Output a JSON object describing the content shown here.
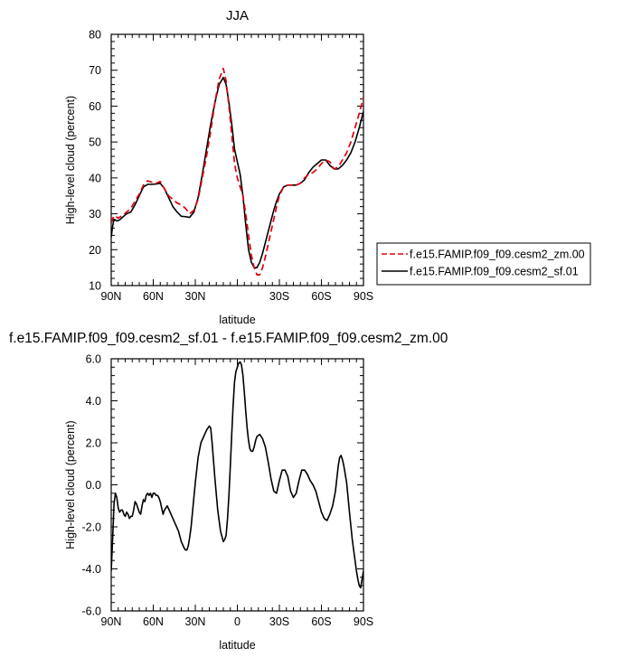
{
  "chart_data": [
    {
      "type": "line",
      "title": "JJA",
      "xlabel": "latitude",
      "ylabel": "High-level cloud (percent)",
      "xlim": [
        90,
        -90
      ],
      "ylim": [
        10,
        80
      ],
      "x_ticks": [
        90,
        60,
        30,
        0,
        -30,
        -60,
        -90
      ],
      "x_tick_labels": [
        "90N",
        "60N",
        "30N",
        "",
        "30S",
        "60S",
        "90S"
      ],
      "y_ticks": [
        10,
        20,
        30,
        40,
        50,
        60,
        70,
        80
      ],
      "y_tick_labels": [
        "10",
        "20",
        "30",
        "40",
        "50",
        "60",
        "70",
        "80"
      ],
      "legend_position": "right",
      "series": [
        {
          "name": "f.e15.FAMIP.f09_f09.cesm2_zm.00",
          "color": "#e0000f",
          "dash": "dashed",
          "x": [
            90,
            88,
            85,
            82,
            79,
            76,
            73,
            70,
            67,
            64,
            61,
            58,
            55,
            52,
            49,
            46,
            43,
            40,
            37,
            34,
            31,
            28,
            25,
            22,
            19,
            16,
            13,
            10,
            8,
            6,
            4,
            2,
            0,
            -2,
            -4,
            -6,
            -8,
            -10,
            -12,
            -14,
            -16,
            -18,
            -20,
            -22,
            -24,
            -26,
            -28,
            -30,
            -33,
            -36,
            -39,
            -42,
            -45,
            -48,
            -51,
            -54,
            -57,
            -60,
            -63,
            -66,
            -69,
            -72,
            -75,
            -78,
            -81,
            -84,
            -87,
            -90
          ],
          "values": [
            27.5,
            29.5,
            28.8,
            29.5,
            30.5,
            31.5,
            33.5,
            35.5,
            38.0,
            39.2,
            38.8,
            38.5,
            39.0,
            37.0,
            35.0,
            34.0,
            33.0,
            32.5,
            31.5,
            30.0,
            31.0,
            34.0,
            40.0,
            46.0,
            53.0,
            61.0,
            67.5,
            70.5,
            67.0,
            60.0,
            52.0,
            44.0,
            40.0,
            37.5,
            35.0,
            30.0,
            24.0,
            18.5,
            15.0,
            13.0,
            13.0,
            15.0,
            18.0,
            21.5,
            25.0,
            28.5,
            32.0,
            35.0,
            37.5,
            38.0,
            38.0,
            38.0,
            38.5,
            40.0,
            41.0,
            41.5,
            42.5,
            44.0,
            45.0,
            44.5,
            42.5,
            43.0,
            45.0,
            47.0,
            50.0,
            54.0,
            58.0,
            62.5
          ]
        },
        {
          "name": "f.e15.FAMIP.f09_f09.cesm2_sf.01",
          "color": "#000000",
          "dash": "solid",
          "x": [
            90,
            89,
            88,
            86,
            84,
            82,
            79,
            76,
            73,
            70,
            67,
            64,
            61,
            58,
            55,
            52,
            49,
            46,
            43,
            40,
            37,
            34,
            31,
            28,
            25,
            22,
            19,
            16,
            13,
            10,
            8,
            6,
            4,
            2,
            0,
            -2,
            -4,
            -6,
            -8,
            -10,
            -12,
            -14,
            -16,
            -18,
            -20,
            -22,
            -24,
            -26,
            -28,
            -30,
            -33,
            -36,
            -39,
            -42,
            -45,
            -48,
            -51,
            -54,
            -57,
            -60,
            -63,
            -66,
            -69,
            -72,
            -75,
            -78,
            -81,
            -84,
            -87,
            -90
          ],
          "values": [
            23.5,
            26.5,
            28.5,
            28.0,
            28.3,
            29.0,
            30.0,
            30.5,
            32.5,
            35.0,
            37.5,
            38.2,
            38.2,
            38.3,
            38.5,
            37.0,
            34.5,
            32.0,
            30.5,
            29.3,
            29.2,
            29.0,
            30.5,
            34.5,
            41.0,
            48.0,
            55.0,
            61.0,
            66.0,
            68.0,
            66.0,
            61.0,
            55.0,
            48.0,
            44.5,
            41.0,
            35.0,
            27.0,
            20.0,
            16.5,
            15.0,
            15.0,
            16.5,
            19.0,
            22.0,
            25.0,
            28.0,
            31.0,
            33.5,
            35.5,
            37.5,
            38.0,
            38.0,
            38.0,
            38.5,
            39.5,
            41.5,
            43.0,
            44.0,
            45.0,
            45.0,
            43.5,
            42.5,
            42.5,
            43.5,
            45.0,
            47.0,
            50.0,
            54.0,
            58.5
          ]
        }
      ]
    },
    {
      "type": "line",
      "title": "f.e15.FAMIP.f09_f09.cesm2_sf.01 - f.e15.FAMIP.f09_f09.cesm2_zm.00",
      "xlabel": "latitude",
      "ylabel": "High-level cloud (percent)",
      "xlim": [
        90,
        -90
      ],
      "ylim": [
        -6,
        6
      ],
      "x_ticks": [
        90,
        60,
        30,
        0,
        -30,
        -60,
        -90
      ],
      "x_tick_labels": [
        "90N",
        "60N",
        "30N",
        "0",
        "30S",
        "60S",
        "90S"
      ],
      "y_ticks": [
        -6,
        -4,
        -2,
        0,
        2,
        4,
        6
      ],
      "y_tick_labels": [
        "-6.0",
        "-4.0",
        "-2.0",
        "0.0",
        "2.0",
        "4.0",
        "6.0"
      ],
      "series": [
        {
          "color": "#000000",
          "dash": "solid",
          "x": [
            90,
            89,
            88,
            87,
            86,
            85,
            84,
            83,
            82,
            81,
            80,
            79,
            78,
            77,
            76,
            75,
            74,
            73,
            72,
            71,
            70,
            69,
            68,
            67,
            66,
            65,
            64,
            63,
            62,
            61,
            60,
            59,
            58,
            57,
            56,
            55,
            54,
            53,
            52,
            50,
            48,
            46,
            44,
            42,
            40,
            38,
            37,
            36,
            35,
            34,
            33,
            32,
            30,
            28,
            26,
            24,
            22,
            20,
            19,
            18,
            16,
            14,
            12,
            10,
            9,
            8,
            7,
            6,
            5,
            4,
            3,
            2,
            1,
            0,
            -1,
            -2,
            -3,
            -4,
            -5,
            -6,
            -7,
            -8,
            -9,
            -10,
            -11,
            -12,
            -13,
            -14,
            -16,
            -18,
            -20,
            -22,
            -24,
            -26,
            -28,
            -30,
            -32,
            -34,
            -36,
            -38,
            -40,
            -42,
            -44,
            -46,
            -48,
            -50,
            -52,
            -54,
            -56,
            -58,
            -60,
            -62,
            -64,
            -66,
            -68,
            -70,
            -71,
            -72,
            -73,
            -74,
            -75,
            -76,
            -78,
            -80,
            -82,
            -84,
            -85,
            -86,
            -87,
            -88,
            -89,
            -90
          ],
          "values": [
            -4.1,
            -2.6,
            -0.9,
            -0.4,
            -0.6,
            -1.1,
            -1.3,
            -1.2,
            -1.2,
            -1.4,
            -1.5,
            -1.3,
            -1.4,
            -1.6,
            -1.5,
            -1.5,
            -1.2,
            -0.8,
            -0.9,
            -1.1,
            -1.3,
            -1.4,
            -1.0,
            -0.7,
            -0.8,
            -0.5,
            -0.4,
            -0.5,
            -0.4,
            -0.6,
            -0.4,
            -0.4,
            -0.5,
            -0.5,
            -0.6,
            -0.8,
            -1.1,
            -1.4,
            -1.2,
            -1.0,
            -1.3,
            -1.6,
            -1.9,
            -2.2,
            -2.7,
            -3.0,
            -3.1,
            -3.1,
            -2.9,
            -2.5,
            -2.0,
            -1.3,
            0.1,
            1.3,
            2.0,
            2.3,
            2.6,
            2.8,
            2.7,
            2.0,
            0.3,
            -1.2,
            -2.2,
            -2.7,
            -2.6,
            -2.4,
            -1.6,
            -0.5,
            0.9,
            2.4,
            3.8,
            4.9,
            5.4,
            5.6,
            5.8,
            5.85,
            5.7,
            5.2,
            4.4,
            3.5,
            2.7,
            2.1,
            1.7,
            1.6,
            1.6,
            1.8,
            2.1,
            2.3,
            2.4,
            2.2,
            1.8,
            1.1,
            0.3,
            -0.3,
            -0.4,
            0.2,
            0.7,
            0.7,
            0.4,
            -0.3,
            -0.6,
            -0.4,
            0.2,
            0.7,
            0.7,
            0.5,
            0.2,
            0.0,
            -0.3,
            -0.8,
            -1.3,
            -1.6,
            -1.7,
            -1.4,
            -1.0,
            -0.3,
            0.3,
            0.9,
            1.3,
            1.4,
            1.2,
            0.9,
            0.1,
            -1.3,
            -2.6,
            -3.6,
            -4.1,
            -4.5,
            -4.8,
            -4.9,
            -4.5,
            -4.1
          ]
        }
      ]
    }
  ]
}
